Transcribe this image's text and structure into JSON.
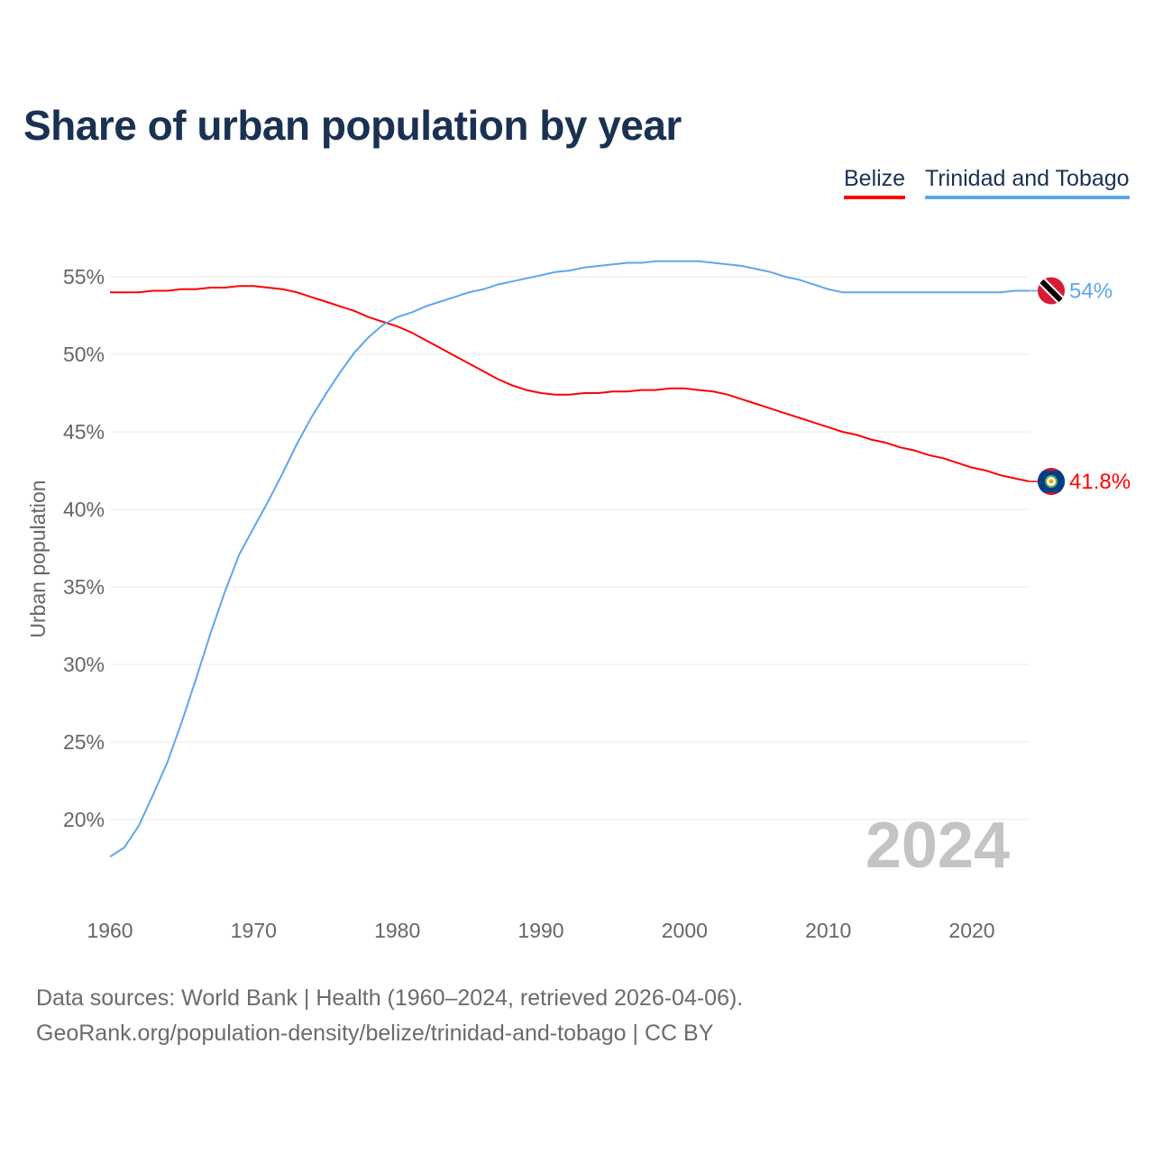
{
  "title": "Share of urban population by year",
  "legend": [
    {
      "name": "Belize",
      "color": "#ff0000"
    },
    {
      "name": "Trinidad and Tobago",
      "color": "#5ea6ec"
    }
  ],
  "source_line1": "Data sources: World Bank | Health (1960–2024, retrieved 2026-04-06).",
  "source_line2": "GeoRank.org/population-density/belize/trinidad-and-tobago | CC BY",
  "year_watermark": "2024",
  "chart_data": {
    "type": "line",
    "title": "Share of urban population by year",
    "xlabel": "",
    "ylabel": "Urban population",
    "xlim": [
      1960,
      2024
    ],
    "ylim": [
      15,
      57
    ],
    "xticks": [
      1960,
      1970,
      1980,
      1990,
      2000,
      2010,
      2020
    ],
    "yticks": [
      20,
      25,
      30,
      35,
      40,
      45,
      50,
      55
    ],
    "ytick_labels": [
      "20%",
      "25%",
      "30%",
      "35%",
      "40%",
      "45%",
      "50%",
      "55%"
    ],
    "grid": true,
    "legend_position": "top-right",
    "x": [
      1960,
      1961,
      1962,
      1963,
      1964,
      1965,
      1966,
      1967,
      1968,
      1969,
      1970,
      1971,
      1972,
      1973,
      1974,
      1975,
      1976,
      1977,
      1978,
      1979,
      1980,
      1981,
      1982,
      1983,
      1984,
      1985,
      1986,
      1987,
      1988,
      1989,
      1990,
      1991,
      1992,
      1993,
      1994,
      1995,
      1996,
      1997,
      1998,
      1999,
      2000,
      2001,
      2002,
      2003,
      2004,
      2005,
      2006,
      2007,
      2008,
      2009,
      2010,
      2011,
      2012,
      2013,
      2014,
      2015,
      2016,
      2017,
      2018,
      2019,
      2020,
      2021,
      2022,
      2023,
      2024
    ],
    "series": [
      {
        "name": "Belize",
        "color": "#ff0000",
        "end_label": "41.8%",
        "values": [
          54.0,
          54.0,
          54.0,
          54.1,
          54.1,
          54.2,
          54.2,
          54.3,
          54.3,
          54.4,
          54.4,
          54.3,
          54.2,
          54.0,
          53.7,
          53.4,
          53.1,
          52.8,
          52.4,
          52.1,
          51.8,
          51.4,
          50.9,
          50.4,
          49.9,
          49.4,
          48.9,
          48.4,
          48.0,
          47.7,
          47.5,
          47.4,
          47.4,
          47.5,
          47.5,
          47.6,
          47.6,
          47.7,
          47.7,
          47.8,
          47.8,
          47.7,
          47.6,
          47.4,
          47.1,
          46.8,
          46.5,
          46.2,
          45.9,
          45.6,
          45.3,
          45.0,
          44.8,
          44.5,
          44.3,
          44.0,
          43.8,
          43.5,
          43.3,
          43.0,
          42.7,
          42.5,
          42.2,
          42.0,
          41.8
        ]
      },
      {
        "name": "Trinidad and Tobago",
        "color": "#5ea6ec",
        "end_label": "54%",
        "values": [
          17.6,
          18.2,
          19.6,
          21.6,
          23.7,
          26.3,
          29.1,
          32.0,
          34.7,
          37.1,
          38.8,
          40.5,
          42.3,
          44.2,
          45.9,
          47.4,
          48.8,
          50.1,
          51.1,
          51.9,
          52.4,
          52.7,
          53.1,
          53.4,
          53.7,
          54.0,
          54.2,
          54.5,
          54.7,
          54.9,
          55.1,
          55.3,
          55.4,
          55.6,
          55.7,
          55.8,
          55.9,
          55.9,
          56.0,
          56.0,
          56.0,
          56.0,
          55.9,
          55.8,
          55.7,
          55.5,
          55.3,
          55.0,
          54.8,
          54.5,
          54.2,
          54.0,
          54.0,
          54.0,
          54.0,
          54.0,
          54.0,
          54.0,
          54.0,
          54.0,
          54.0,
          54.0,
          54.0,
          54.1,
          54.1
        ]
      }
    ]
  }
}
